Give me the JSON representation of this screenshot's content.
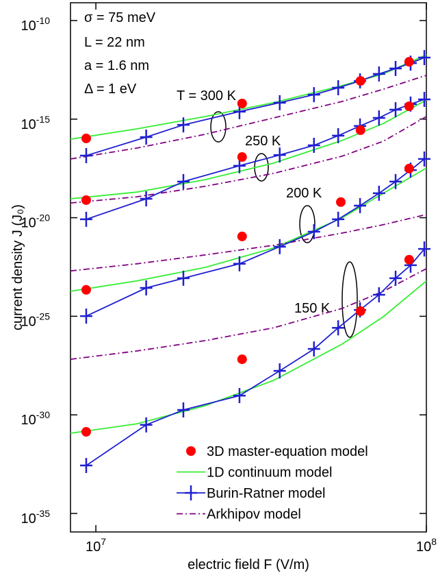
{
  "chart_data": {
    "type": "line",
    "x_label": "electric field F (V/m)",
    "y_label": "current density J (J₀)",
    "xscale": "log",
    "yscale": "log",
    "xlim": [
      8380000.0,
      100000000.0
    ],
    "ylim": [
      1.15e-36,
      8e-10
    ],
    "xticks": [
      {
        "value": 10000000.0,
        "label": "10",
        "exponent": "7"
      },
      {
        "value": 100000000.0,
        "label": "10",
        "exponent": "8"
      }
    ],
    "yticks": [
      {
        "value": 1e-10,
        "label": "10",
        "exponent": "-10"
      },
      {
        "value": 1e-15,
        "label": "10",
        "exponent": "-15"
      },
      {
        "value": 1e-20,
        "label": "10",
        "exponent": "-20"
      },
      {
        "value": 1e-25,
        "label": "10",
        "exponent": "-25"
      },
      {
        "value": 1e-30,
        "label": "10",
        "exponent": "-30"
      },
      {
        "value": 1e-35,
        "label": "10",
        "exponent": "-35"
      }
    ],
    "legend": "lower right",
    "annotations": [
      "σ = 75 meV",
      "L = 22 nm",
      "a = 1.6 nm",
      "Δ = 1 eV",
      "T = 300 K",
      "250 K",
      "200 K",
      "150 K"
    ],
    "series": [
      {
        "name": "3D master-equation model",
        "color": "#ff0000",
        "marker": "circle",
        "line": "none",
        "curves": [
          {
            "x": [
              9350000.0,
              27700000.0,
              63200000.0,
              88700000.0
            ],
            "values": [
              1.05e-16,
              6.2e-15,
              8.7e-14,
              8.1e-13
            ]
          },
          {
            "x": [
              9350000.0,
              27700000.0,
              63200000.0,
              88700000.0
            ],
            "values": [
              7.8e-20,
              1.2e-17,
              2.75e-16,
              4.5e-15
            ]
          },
          {
            "x": [
              9350000.0,
              27700000.0,
              55100000.0,
              88700000.0
            ],
            "values": [
              2.2e-24,
              1.12e-21,
              6.2e-20,
              3.1e-18
            ]
          },
          {
            "x": [
              9350000.0,
              27700000.0,
              63200000.0,
              88700000.0
            ],
            "values": [
              1.38e-31,
              6.6e-28,
              1.82e-25,
              7.4e-23
            ]
          }
        ]
      },
      {
        "name": "1D continuum model",
        "color": "#33ee33",
        "line": "solid",
        "curves": [
          {
            "x": [
              8380000.0,
              13300000.0,
              21400000.0,
              34500000.0,
              55600000.0,
              74100000.0,
              100000000.0
            ],
            "values": [
              9.6e-17,
              3.2e-16,
              1.35e-15,
              6.8e-15,
              5e-14,
              1.95e-13,
              1.82e-12
            ]
          },
          {
            "x": [
              8380000.0,
              13300000.0,
              21400000.0,
              34500000.0,
              55600000.0,
              74100000.0,
              100000000.0
            ],
            "values": [
              9.1e-20,
              2e-19,
              8.5e-19,
              5.9e-18,
              8.3e-17,
              6e-16,
              9.3e-15
            ]
          },
          {
            "x": [
              8380000.0,
              13300000.0,
              21400000.0,
              34500000.0,
              55600000.0,
              74100000.0,
              100000000.0
            ],
            "values": [
              1.86e-24,
              6.2e-24,
              3e-23,
              2.9e-22,
              9.8e-21,
              1.74e-19,
              3.3e-18
            ]
          },
          {
            "x": [
              8380000.0,
              13300000.0,
              21400000.0,
              34500000.0,
              55600000.0,
              74100000.0,
              100000000.0
            ],
            "values": [
              1.17e-31,
              3.5e-31,
              2.9e-30,
              5.6e-29,
              3.9e-27,
              9.5e-26,
              6.2e-24
            ]
          }
        ]
      },
      {
        "name": "Burin-Ratner model",
        "color": "#1f1fd0",
        "marker": "plus",
        "line": "solid",
        "curves": [
          {
            "x": [
              9350000.0,
              14200000.0,
              18400000.0,
              27200000.0,
              36000000.0,
              45700000.0,
              54100000.0,
              63000000.0,
              71900000.0,
              80700000.0,
              89600000.0,
              98600000.0
            ],
            "values": [
              1.41e-17,
              1.23e-16,
              5.1e-16,
              2.4e-15,
              6.8e-15,
              1.74e-14,
              3.9e-14,
              8.7e-14,
              1.95e-13,
              3.7e-13,
              6.9e-13,
              1.32e-12
            ]
          },
          {
            "x": [
              9350000.0,
              14200000.0,
              18400000.0,
              27200000.0,
              36000000.0,
              45700000.0,
              54100000.0,
              63000000.0,
              71900000.0,
              80700000.0,
              89600000.0,
              98600000.0
            ],
            "values": [
              8.3e-21,
              9.1e-20,
              6.8e-19,
              4.3e-18,
              1.51e-17,
              4.7e-17,
              1.45e-16,
              4.5e-16,
              1.15e-15,
              3e-15,
              5.8e-15,
              1e-14
            ]
          },
          {
            "x": [
              9350000.0,
              14200000.0,
              18400000.0,
              27200000.0,
              36000000.0,
              45700000.0,
              54100000.0,
              63000000.0,
              71900000.0,
              80700000.0,
              89600000.0,
              98600000.0
            ],
            "values": [
              1.02e-25,
              2.75e-24,
              8.5e-24,
              4.6e-23,
              3.4e-22,
              1.95e-21,
              8.3e-21,
              4.1e-20,
              1.74e-19,
              6.8e-19,
              2.6e-18,
              9.5e-18
            ]
          },
          {
            "x": [
              9350000.0,
              14200000.0,
              18400000.0,
              27200000.0,
              36000000.0,
              45700000.0,
              54100000.0,
              63000000.0,
              71900000.0,
              80700000.0,
              89600000.0,
              98600000.0
            ],
            "values": [
              2.7e-33,
              3.1e-31,
              1.78e-30,
              9.5e-30,
              1.7e-28,
              2.2e-27,
              2.6e-26,
              2.1e-25,
              1.23e-24,
              8.5e-24,
              3.9e-23,
              2.6e-22
            ]
          }
        ]
      },
      {
        "name": "Arkhipov model",
        "color": "#800080",
        "line": "dashdot",
        "curves": [
          {
            "x": [
              8380000.0,
              13300000.0,
              21400000.0,
              34500000.0,
              55600000.0,
              74100000.0,
              100000000.0
            ],
            "values": [
              9.5e-18,
              3.4e-17,
              1.7e-16,
              1.15e-15,
              7.9e-15,
              3.3e-14,
              1.66e-13
            ]
          },
          {
            "x": [
              8380000.0,
              13300000.0,
              21400000.0,
              34500000.0,
              55600000.0,
              74100000.0,
              100000000.0
            ],
            "values": [
              5.6e-20,
              1.15e-19,
              3.9e-19,
              1.78e-18,
              1.32e-17,
              7.6e-17,
              1.35e-15
            ]
          },
          {
            "x": [
              8380000.0,
              13300000.0,
              21400000.0,
              34500000.0,
              55600000.0,
              74100000.0,
              100000000.0
            ],
            "values": [
              2e-23,
              4.6e-23,
              1.29e-22,
              4e-22,
              1.66e-21,
              4.4e-21,
              1.45e-20
            ]
          },
          {
            "x": [
              8380000.0,
              13300000.0,
              21400000.0,
              34500000.0,
              55600000.0,
              74100000.0,
              100000000.0
            ],
            "values": [
              6.6e-28,
              1.74e-27,
              5.8e-27,
              2.6e-26,
              2.5e-25,
              1.86e-24,
              2.6e-23
            ]
          }
        ]
      }
    ]
  }
}
